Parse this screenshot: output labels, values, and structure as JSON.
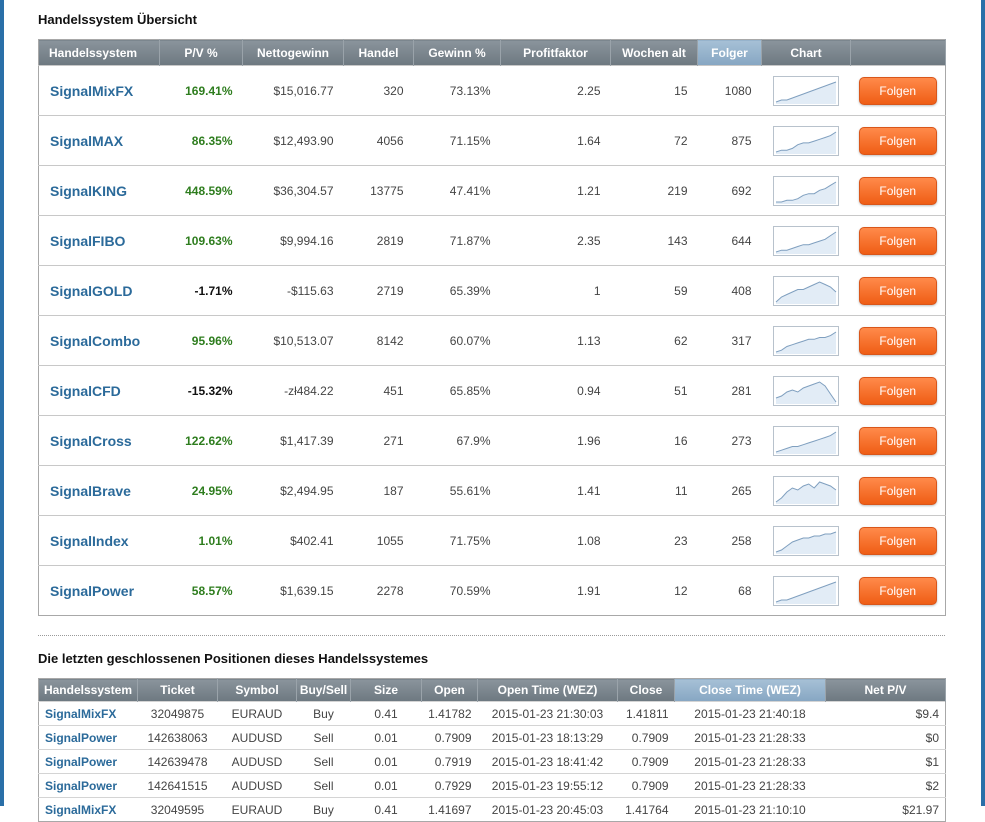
{
  "overview": {
    "title": "Handelssystem Übersicht",
    "columns": [
      "Handelssystem",
      "P/V %",
      "Nettogewinn",
      "Handel",
      "Gewinn %",
      "Profitfaktor",
      "Wochen alt",
      "Folger",
      "Chart",
      ""
    ],
    "sorted_column": "Folger",
    "button_label": "Folgen",
    "rows": [
      {
        "name": "SignalMixFX",
        "pv": "169.41%",
        "net": "$15,016.77",
        "trades": "320",
        "win": "73.13%",
        "pf": "2.25",
        "weeks": "15",
        "followers": "1080",
        "negative": false,
        "spark": [
          2,
          3,
          3,
          4,
          5,
          6,
          7,
          8,
          9,
          10,
          11,
          12
        ]
      },
      {
        "name": "SignalMAX",
        "pv": "86.35%",
        "net": "$12,493.90",
        "trades": "4056",
        "win": "71.15%",
        "pf": "1.64",
        "weeks": "72",
        "followers": "875",
        "negative": false,
        "spark": [
          1,
          2,
          2,
          3,
          5,
          6,
          6,
          7,
          8,
          9,
          10,
          12
        ]
      },
      {
        "name": "SignalKING",
        "pv": "448.59%",
        "net": "$36,304.57",
        "trades": "13775",
        "win": "47.41%",
        "pf": "1.21",
        "weeks": "219",
        "followers": "692",
        "negative": false,
        "spark": [
          1,
          1,
          2,
          2,
          3,
          5,
          6,
          6,
          8,
          9,
          11,
          13
        ]
      },
      {
        "name": "SignalFIBO",
        "pv": "109.63%",
        "net": "$9,994.16",
        "trades": "2819",
        "win": "71.87%",
        "pf": "2.35",
        "weeks": "143",
        "followers": "644",
        "negative": false,
        "spark": [
          2,
          3,
          3,
          4,
          5,
          6,
          6,
          7,
          8,
          9,
          11,
          13
        ]
      },
      {
        "name": "SignalGOLD",
        "pv": "-1.71%",
        "net": "-$115.63",
        "trades": "2719",
        "win": "65.39%",
        "pf": "1",
        "weeks": "59",
        "followers": "408",
        "negative": true,
        "spark": [
          2,
          4,
          5,
          6,
          7,
          7,
          8,
          9,
          10,
          9,
          8,
          6
        ]
      },
      {
        "name": "SignalCombo",
        "pv": "95.96%",
        "net": "$10,513.07",
        "trades": "8142",
        "win": "60.07%",
        "pf": "1.13",
        "weeks": "62",
        "followers": "317",
        "negative": false,
        "spark": [
          2,
          3,
          5,
          6,
          7,
          8,
          9,
          9,
          10,
          10,
          11,
          13
        ]
      },
      {
        "name": "SignalCFD",
        "pv": "-15.32%",
        "net": "-zł484.22",
        "trades": "451",
        "win": "65.85%",
        "pf": "0.94",
        "weeks": "51",
        "followers": "281",
        "negative": true,
        "spark": [
          4,
          5,
          7,
          8,
          7,
          9,
          10,
          11,
          12,
          10,
          6,
          2
        ]
      },
      {
        "name": "SignalCross",
        "pv": "122.62%",
        "net": "$1,417.39",
        "trades": "271",
        "win": "67.9%",
        "pf": "1.96",
        "weeks": "16",
        "followers": "273",
        "negative": false,
        "spark": [
          2,
          3,
          4,
          5,
          5,
          6,
          7,
          8,
          9,
          10,
          11,
          13
        ]
      },
      {
        "name": "SignalBrave",
        "pv": "24.95%",
        "net": "$2,494.95",
        "trades": "187",
        "win": "55.61%",
        "pf": "1.41",
        "weeks": "11",
        "followers": "265",
        "negative": false,
        "spark": [
          2,
          4,
          7,
          9,
          8,
          10,
          11,
          9,
          12,
          11,
          10,
          8
        ]
      },
      {
        "name": "SignalIndex",
        "pv": "1.01%",
        "net": "$402.41",
        "trades": "1055",
        "win": "71.75%",
        "pf": "1.08",
        "weeks": "23",
        "followers": "258",
        "negative": false,
        "spark": [
          3,
          4,
          6,
          8,
          9,
          10,
          10,
          11,
          11,
          12,
          12,
          13
        ]
      },
      {
        "name": "SignalPower",
        "pv": "58.57%",
        "net": "$1,639.15",
        "trades": "2278",
        "win": "70.59%",
        "pf": "1.91",
        "weeks": "12",
        "followers": "68",
        "negative": false,
        "spark": [
          2,
          3,
          3,
          4,
          5,
          6,
          7,
          8,
          9,
          10,
          11,
          12
        ]
      }
    ]
  },
  "positions": {
    "title": "Die letzten geschlossenen Positionen dieses Handelssystemes",
    "columns": [
      "Handelssystem",
      "Ticket",
      "Symbol",
      "Buy/Sell",
      "Size",
      "Open",
      "Open Time (WEZ)",
      "Close",
      "Close Time (WEZ)",
      "Net P/V"
    ],
    "sorted_column": "Close Time (WEZ)",
    "rows": [
      {
        "system": "SignalMixFX",
        "ticket": "32049875",
        "symbol": "EURAUD",
        "side": "Buy",
        "size": "0.41",
        "open": "1.41782",
        "open_time": "2015-01-23 21:30:03",
        "close": "1.41811",
        "close_time": "2015-01-23 21:40:18",
        "net": "$9.4"
      },
      {
        "system": "SignalPower",
        "ticket": "142638063",
        "symbol": "AUDUSD",
        "side": "Sell",
        "size": "0.01",
        "open": "0.7909",
        "open_time": "2015-01-23 18:13:29",
        "close": "0.7909",
        "close_time": "2015-01-23 21:28:33",
        "net": "$0"
      },
      {
        "system": "SignalPower",
        "ticket": "142639478",
        "symbol": "AUDUSD",
        "side": "Sell",
        "size": "0.01",
        "open": "0.7919",
        "open_time": "2015-01-23 18:41:42",
        "close": "0.7909",
        "close_time": "2015-01-23 21:28:33",
        "net": "$1"
      },
      {
        "system": "SignalPower",
        "ticket": "142641515",
        "symbol": "AUDUSD",
        "side": "Sell",
        "size": "0.01",
        "open": "0.7929",
        "open_time": "2015-01-23 19:55:12",
        "close": "0.7909",
        "close_time": "2015-01-23 21:28:33",
        "net": "$2"
      },
      {
        "system": "SignalMixFX",
        "ticket": "32049595",
        "symbol": "EURAUD",
        "side": "Buy",
        "size": "0.41",
        "open": "1.41697",
        "open_time": "2015-01-23 20:45:03",
        "close": "1.41764",
        "close_time": "2015-01-23 21:10:10",
        "net": "$21.97"
      }
    ]
  },
  "colors": {
    "header_bg": "#7d878f",
    "sorted_header_bg": "#95b3cc",
    "system_link": "#2b6a9a",
    "positive_pv": "#2e7d1e",
    "follow_button": "#f36a22",
    "page_frame": "#2a6fa8"
  }
}
